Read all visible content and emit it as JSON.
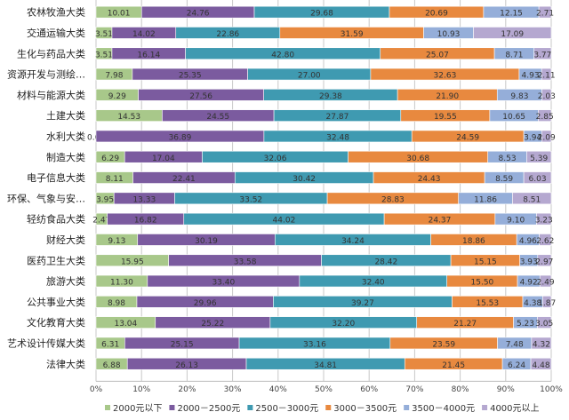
{
  "chart_data": {
    "type": "bar",
    "orientation": "horizontal",
    "stacked": "percent",
    "title": "",
    "xlabel": "",
    "ylabel": "",
    "xlim": [
      0,
      100
    ],
    "x_ticks": [
      "0%",
      "10%",
      "20%",
      "30%",
      "40%",
      "50%",
      "60%",
      "70%",
      "80%",
      "90%",
      "100%"
    ],
    "grid": true,
    "legend_position": "bottom",
    "categories": [
      "农林牧渔大类",
      "交通运输大类",
      "生化与药品大类",
      "资源开发与测绘…",
      "材料与能源大类",
      "土建大类",
      "水利大类",
      "制造大类",
      "电子信息大类",
      "环保、气象与安…",
      "轻纺食品大类",
      "财经大类",
      "医药卫生大类",
      "旅游大类",
      "公共事业大类",
      "文化教育大类",
      "艺术设计传媒大类",
      "法律大类"
    ],
    "series": [
      {
        "name": "2000元以下",
        "color": "#a8c88a",
        "values": [
          10.01,
          3.51,
          3.51,
          7.98,
          9.29,
          14.53,
          0.0,
          6.29,
          8.11,
          3.95,
          2.47,
          9.13,
          15.95,
          11.3,
          8.98,
          13.04,
          6.31,
          6.88
        ]
      },
      {
        "name": "2000－2500元",
        "color": "#7b5b9f",
        "values": [
          24.76,
          14.02,
          16.14,
          25.35,
          27.56,
          24.55,
          36.89,
          17.04,
          22.41,
          13.33,
          16.82,
          30.19,
          33.58,
          33.4,
          29.96,
          25.22,
          25.15,
          26.13
        ]
      },
      {
        "name": "2500－3000元",
        "color": "#3f9ab1",
        "values": [
          29.68,
          22.86,
          42.8,
          27.0,
          29.38,
          27.87,
          32.48,
          32.06,
          30.42,
          33.52,
          44.02,
          34.24,
          28.42,
          32.4,
          39.27,
          32.2,
          33.16,
          34.81
        ]
      },
      {
        "name": "3000－3500元",
        "color": "#e8893f",
        "values": [
          20.69,
          31.59,
          25.07,
          32.63,
          21.9,
          19.55,
          24.59,
          30.68,
          24.43,
          28.83,
          24.37,
          18.86,
          15.15,
          15.5,
          15.53,
          21.27,
          23.59,
          21.45
        ]
      },
      {
        "name": "3500－4000元",
        "color": "#95aed9",
        "values": [
          12.15,
          10.93,
          8.71,
          4.93,
          9.83,
          10.65,
          3.94,
          8.53,
          8.59,
          11.86,
          9.1,
          4.96,
          3.93,
          4.92,
          4.38,
          5.23,
          7.48,
          6.24
        ]
      },
      {
        "name": "4000元以上",
        "color": "#b5a8d0",
        "values": [
          2.71,
          17.09,
          3.77,
          2.11,
          2.03,
          2.85,
          2.09,
          5.39,
          6.03,
          8.51,
          3.23,
          2.62,
          2.97,
          2.49,
          1.87,
          3.05,
          4.32,
          4.48
        ]
      }
    ]
  }
}
